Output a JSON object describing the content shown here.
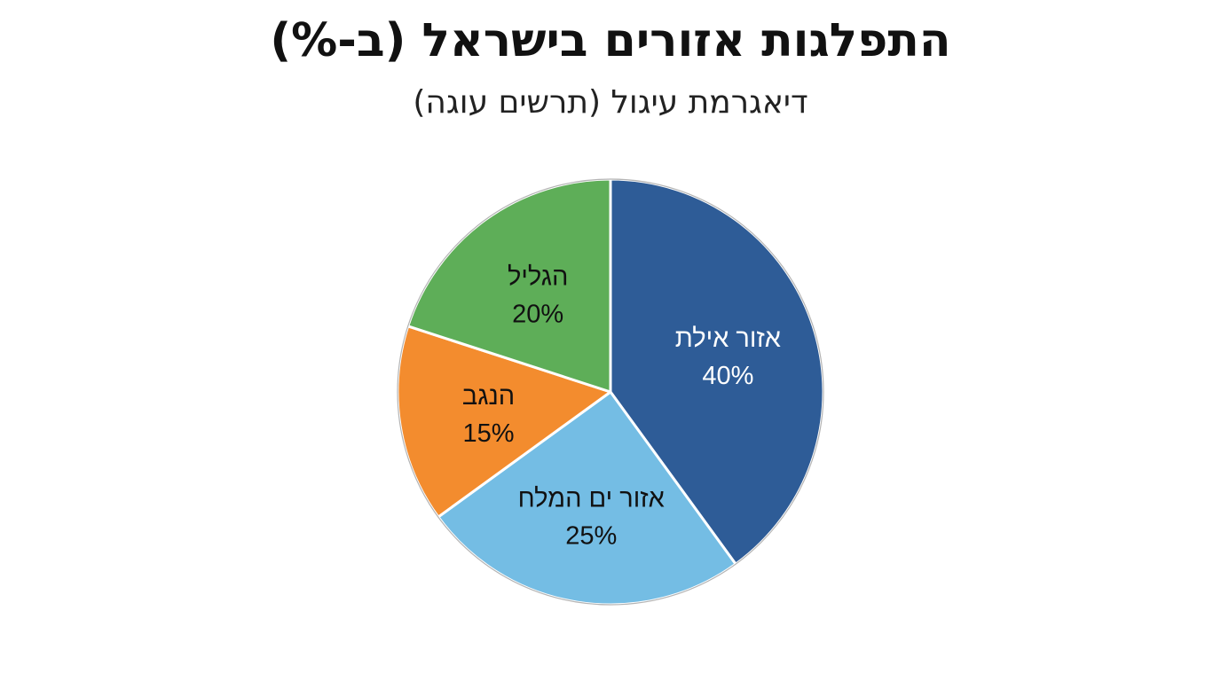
{
  "title": "התפלגות אזורים בישראל (ב-%)",
  "subtitle": "דיאגרמת עיגול (תרשים עוגה)",
  "chart_data": {
    "type": "pie",
    "title": "התפלגות אזורים בישראל (ב-%)",
    "subtitle": "דיאגרמת עיגול (תרשים עוגה)",
    "slices": [
      {
        "name": "אזור אילת",
        "value": 40,
        "label": "40%",
        "color": "#2e5c97",
        "text_color": "#ffffff"
      },
      {
        "name": "אזור ים המלח",
        "value": 25,
        "label": "25%",
        "color": "#74bde4",
        "text_color": "#111111"
      },
      {
        "name": "הנגב",
        "value": 15,
        "label": "15%",
        "color": "#f38c2e",
        "text_color": "#111111"
      },
      {
        "name": "הגליל",
        "value": 20,
        "label": "20%",
        "color": "#5eae58",
        "text_color": "#111111"
      }
    ],
    "start_angle": "12 o'clock",
    "direction": "clockwise",
    "legend": "none"
  }
}
